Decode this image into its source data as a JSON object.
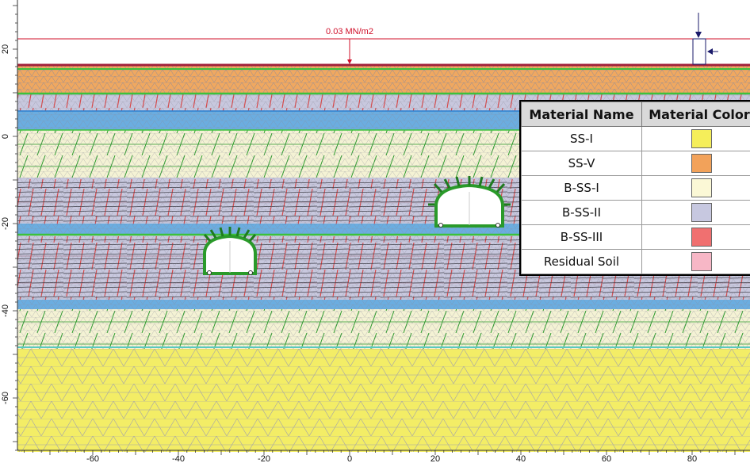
{
  "load": {
    "label": "0.03 MN/m2",
    "color": "#d0102a"
  },
  "axes": {
    "x_ticks": [
      "-60",
      "-40",
      "-20",
      "0",
      "20",
      "40",
      "60",
      "80"
    ],
    "y_ticks": [
      "20",
      "0",
      "-20",
      "-40",
      "-60"
    ]
  },
  "legend": {
    "headers": {
      "name": "Material Name",
      "color": "Material Color"
    },
    "rows": [
      {
        "name": "SS-I",
        "color": "#f5ee5a"
      },
      {
        "name": "SS-V",
        "color": "#f2a25a"
      },
      {
        "name": "B-SS-I",
        "color": "#fbf8d6"
      },
      {
        "name": "B-SS-II",
        "color": "#c7c8e0"
      },
      {
        "name": "B-SS-III",
        "color": "#f07070"
      },
      {
        "name": "Residual Soil",
        "color": "#f7b7c6"
      }
    ]
  },
  "layers": {
    "ss_i": "#f3ed66",
    "ss_v": "#f0a860",
    "b_ss_i": "#f4f2d4",
    "b_ss_ii": "#c8c8de",
    "blue_band": "#5aa8e0",
    "boundary": "#3cc23c",
    "bolt": "#d84848",
    "joint": "#2a9a2a",
    "surface": "#a0203a",
    "mesh": "#9a9aaa"
  }
}
